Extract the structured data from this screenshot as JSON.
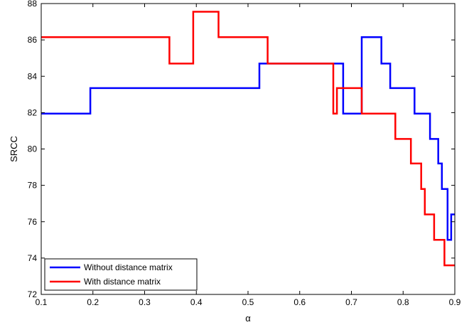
{
  "chart_data": {
    "type": "line",
    "title": "",
    "xlabel": "α",
    "ylabel": "SRCC",
    "xlim": [
      0.1,
      0.9
    ],
    "ylim": [
      72,
      88
    ],
    "xticks": [
      0.1,
      0.2,
      0.3,
      0.4,
      0.5,
      0.6,
      0.7,
      0.8,
      0.9
    ],
    "xtick_labels": [
      "0.1",
      "0.2",
      "0.3",
      "0.4",
      "0.5",
      "0.6",
      "0.7",
      "0.8",
      "0.9"
    ],
    "yticks": [
      72,
      74,
      76,
      78,
      80,
      82,
      84,
      86,
      88
    ],
    "ytick_labels": [
      "72",
      "74",
      "76",
      "78",
      "80",
      "82",
      "84",
      "86",
      "88"
    ],
    "grid": false,
    "legend_position": "bottom-left",
    "series": [
      {
        "name": "Without distance matrix",
        "color": "#0000ff",
        "x": [
          0.1,
          0.195,
          0.195,
          0.522,
          0.522,
          0.684,
          0.684,
          0.72,
          0.72,
          0.758,
          0.758,
          0.775,
          0.775,
          0.822,
          0.822,
          0.852,
          0.852,
          0.868,
          0.868,
          0.875,
          0.875,
          0.886,
          0.886,
          0.893,
          0.893,
          0.9
        ],
        "y": [
          81.95,
          81.95,
          83.35,
          83.35,
          84.7,
          84.7,
          81.95,
          81.95,
          86.15,
          86.15,
          84.7,
          84.7,
          83.35,
          83.35,
          81.95,
          81.95,
          80.55,
          80.55,
          79.2,
          79.2,
          77.8,
          77.8,
          75.0,
          75.0,
          76.4,
          76.4
        ]
      },
      {
        "name": "With distance matrix",
        "color": "#ff0000",
        "x": [
          0.1,
          0.348,
          0.348,
          0.394,
          0.394,
          0.443,
          0.443,
          0.538,
          0.538,
          0.665,
          0.665,
          0.672,
          0.672,
          0.72,
          0.72,
          0.785,
          0.785,
          0.815,
          0.815,
          0.835,
          0.835,
          0.842,
          0.842,
          0.86,
          0.86,
          0.88,
          0.88,
          0.9
        ],
        "y": [
          86.15,
          86.15,
          84.7,
          84.7,
          87.55,
          87.55,
          86.15,
          86.15,
          84.7,
          84.7,
          81.95,
          81.95,
          83.35,
          83.35,
          81.95,
          81.95,
          80.55,
          80.55,
          79.2,
          79.2,
          77.8,
          77.8,
          76.4,
          76.4,
          75.0,
          75.0,
          73.6,
          73.6
        ]
      }
    ]
  }
}
